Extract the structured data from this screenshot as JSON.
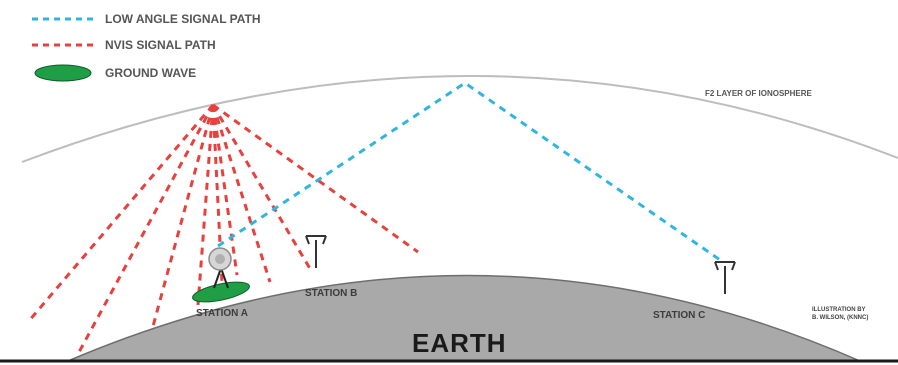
{
  "legend": {
    "low_angle": "LOW ANGLE SIGNAL PATH",
    "nvis": "NVIS  SIGNAL PATH",
    "ground_wave": "GROUND WAVE"
  },
  "labels": {
    "f2_layer": "F2 LAYER OF IONOSPHERE",
    "station_a": "STATION A",
    "station_b": "STATION B",
    "station_c": "STATION C",
    "earth": "EARTH",
    "credit_line1": "ILLUSTRATION BY",
    "credit_line2": "B. WILSON, (KNNC)"
  },
  "colors": {
    "low_angle": "#2fb6e0",
    "nvis": "#e8403c",
    "ground_wave": "#1f9e45",
    "earth": "#a9a9a9",
    "ionosphere": "#bdbdbd"
  },
  "icons": {
    "antenna": "antenna-tower-icon",
    "dish": "satellite-dish-icon"
  }
}
